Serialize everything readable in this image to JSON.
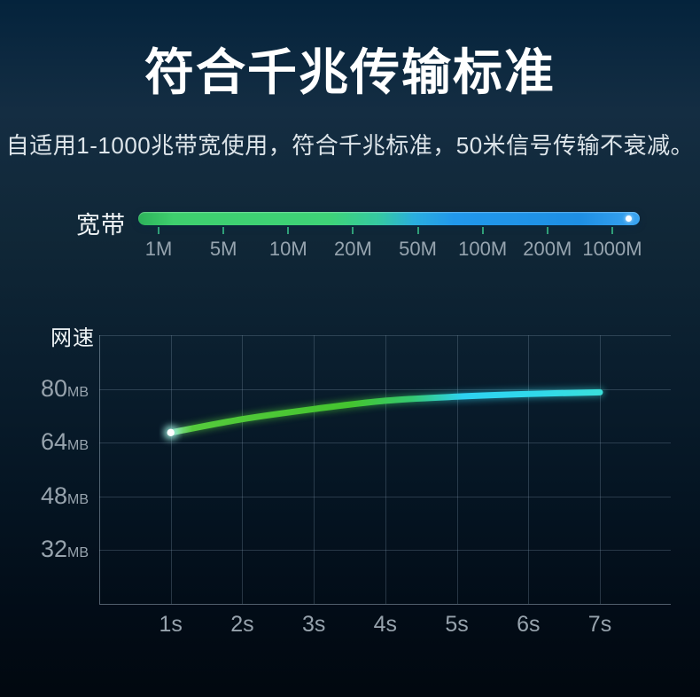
{
  "page": {
    "title": "符合千兆传输标准",
    "subtitle": "自适用1-1000兆带宽使用，符合千兆标准，50米信号传输不衰减。"
  },
  "bandwidth": {
    "label": "宽带",
    "scale_labels": [
      "1M",
      "5M",
      "10M",
      "20M",
      "50M",
      "100M",
      "200M",
      "1000M"
    ],
    "bar_gradient": [
      "#3ecf6e",
      "#35c9a2",
      "#2198ec",
      "#1e8fe4"
    ],
    "tick_color": "#2f9f78"
  },
  "chart_data": {
    "type": "line",
    "title": "网速",
    "ylabel": "网速",
    "x": [
      1,
      2,
      3,
      4,
      5,
      6,
      7
    ],
    "x_tick_labels": [
      "1s",
      "2s",
      "3s",
      "4s",
      "5s",
      "6s",
      "7s"
    ],
    "y_ticks": [
      {
        "value": "80",
        "unit": "MB"
      },
      {
        "value": "64",
        "unit": "MB"
      },
      {
        "value": "48",
        "unit": "MB"
      },
      {
        "value": "32",
        "unit": "MB"
      }
    ],
    "y_tick_values": [
      80,
      64,
      48,
      32
    ],
    "ylim": [
      16,
      96
    ],
    "grid": true,
    "legend": "none",
    "series": [
      {
        "name": "网速",
        "unit": "MB",
        "values": [
          67,
          71,
          74,
          76.5,
          77.7,
          78.5,
          79
        ]
      }
    ],
    "line_gradient": [
      "#55cb3c",
      "#44c42f",
      "#35ca70",
      "#2ed2f2",
      "#3ae0db"
    ],
    "start_marker_color": "#ffffff"
  },
  "colors": {
    "background_top": "#04233c",
    "background_bottom": "#01080f",
    "title_text": "#ffffff",
    "subtitle_text": "#dde5ea",
    "tick_label_text": "#96a4af",
    "grid_line": "#3c5264",
    "green_accent": "#3ecf6e",
    "blue_accent": "#1e8fe4",
    "cyan_accent": "#3ae0db"
  }
}
